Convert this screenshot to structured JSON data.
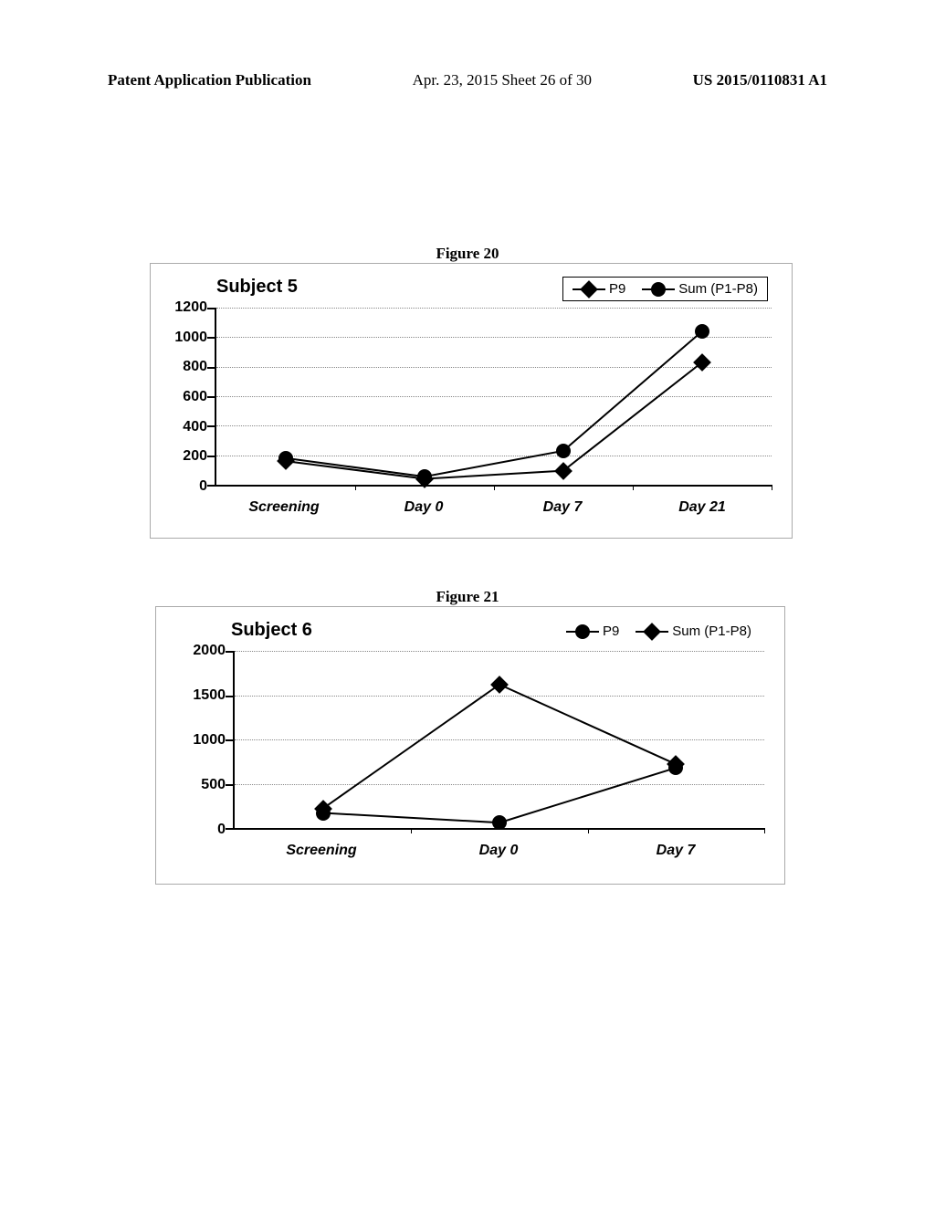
{
  "header": {
    "left": "Patent Application Publication",
    "center": "Apr. 23, 2015  Sheet 26 of 30",
    "right": "US 2015/0110831 A1"
  },
  "figure1": {
    "caption": "Figure 20",
    "chart": {
      "type": "line",
      "title": "Subject 5",
      "title_fontsize": 20,
      "title_fontfamily": "Comic Sans MS",
      "categories": [
        "Screening",
        "Day 0",
        "Day 7",
        "Day 21"
      ],
      "ylim": [
        0,
        1200
      ],
      "ytick_step": 200,
      "yticks": [
        0,
        200,
        400,
        600,
        800,
        1000,
        1200
      ],
      "series": [
        {
          "name": "P9",
          "marker": "diamond",
          "color": "#000000",
          "values": [
            160,
            40,
            95,
            830
          ]
        },
        {
          "name": "Sum (P1-P8)",
          "marker": "circle",
          "color": "#000000",
          "values": [
            180,
            55,
            230,
            1040
          ]
        }
      ],
      "line_color": "#000000",
      "line_width": 2,
      "marker_size": 14,
      "background_color": "#ffffff",
      "grid_color": "#888888",
      "grid_style": "dotted",
      "label_fontsize": 16,
      "label_fontfamily": "Comic Sans MS",
      "legend_position": "top-right",
      "legend_border": true
    }
  },
  "figure2": {
    "caption": "Figure 21",
    "chart": {
      "type": "line",
      "title": "Subject 6",
      "title_fontsize": 20,
      "title_fontfamily": "Comic Sans MS",
      "categories": [
        "Screening",
        "Day 0",
        "Day 7"
      ],
      "ylim": [
        0,
        2000
      ],
      "ytick_step": 500,
      "yticks": [
        0,
        500,
        1000,
        1500,
        2000
      ],
      "series": [
        {
          "name": "P9",
          "marker": "circle",
          "color": "#000000",
          "values": [
            170,
            60,
            680
          ]
        },
        {
          "name": "Sum (P1-P8)",
          "marker": "diamond",
          "color": "#000000",
          "values": [
            220,
            1620,
            720
          ]
        }
      ],
      "line_color": "#000000",
      "line_width": 2,
      "marker_size": 14,
      "background_color": "#ffffff",
      "grid_color": "#888888",
      "grid_style": "dotted",
      "label_fontsize": 16,
      "label_fontfamily": "Comic Sans MS",
      "legend_position": "top-right",
      "legend_border": true
    }
  }
}
